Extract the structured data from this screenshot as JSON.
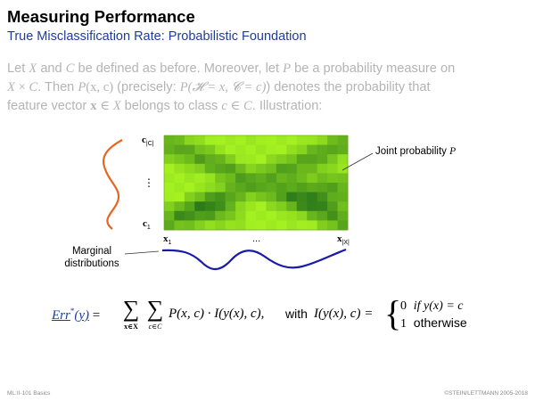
{
  "slide": {
    "title": "Measuring Performance",
    "subtitle": "True Misclassification Rate: Probabilistic Foundation"
  },
  "intro": {
    "t1": "Let ",
    "X1": "X",
    "t2": " and ",
    "C1": "C",
    "t3": " be defined as before. Moreover, let ",
    "P1": "P",
    "t4": " be a probability measure on",
    "X2": "X",
    "times": " × ",
    "C2": "C",
    "t5": ". Then ",
    "Pxc": "P",
    "Pxc_args": "(x, c)",
    "t6": " (precisely: ",
    "Pprec": "P(𝓗 = x, 𝓒 = c)",
    "t7": ") denotes the probability that",
    "t8": "feature vector ",
    "xvec": "x",
    "in1": " ∈ ",
    "X3": "X",
    "t9": " belongs to class ",
    "c1": "c",
    "in2": " ∈ ",
    "C3": "C",
    "t10": ". Illustration:"
  },
  "illustration": {
    "y_top_label": "c",
    "y_top_sub": "|C|",
    "y_vdots": "⋮",
    "y_bottom_label": "c",
    "y_bottom_sub": "1",
    "x_left_label": "x",
    "x_left_sub": "1",
    "x_dots": "...",
    "x_right_label": "x",
    "x_right_sub": "|X|",
    "joint_label": "Joint probability ",
    "joint_symbol": "P",
    "marginal_label_line1": "Marginal",
    "marginal_label_line2": "distributions",
    "colors": {
      "marginal_y": "#e8651f",
      "marginal_x": "#1a1aa8",
      "heatmap_light": "#a4f020",
      "heatmap_dark": "#2c7a1a"
    },
    "heatmap": {
      "rows": 10,
      "cols": 18,
      "description_values": "green intensity increases with joint probability"
    }
  },
  "formula": {
    "err_name": "Err",
    "err_star": "*",
    "err_arg": "(y)",
    "equals": " = ",
    "sum_sub1": "x∈X",
    "sum_sub2": "c∈C",
    "term": "P(x, c) · I(y(x), c),",
    "with": "with",
    "I_def": "I(y(x), c) =",
    "case1_val": "0",
    "case1_cond": "if y(x) = c",
    "case2_val": "1",
    "case2_cond": "otherwise"
  },
  "footer": {
    "left": "ML:II-101    Basics",
    "right": "©STEIN/LETTMANN 2005-2018"
  }
}
